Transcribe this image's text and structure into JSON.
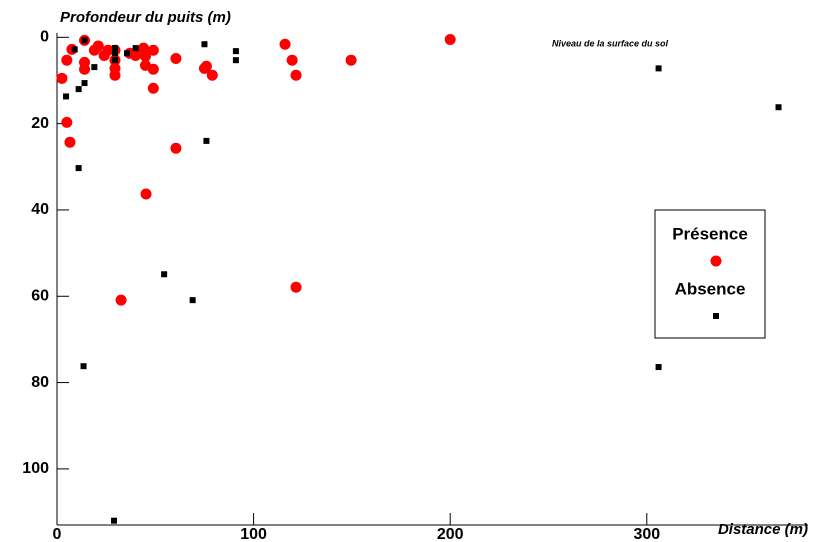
{
  "chart_data": {
    "type": "scatter",
    "y_axis_title": "Profondeur du puits (m)",
    "x_axis_title": "Distance (m)",
    "annotation": "Niveau de la surface du sol",
    "xlim": [
      0,
      382
    ],
    "ylim": [
      -1,
      113
    ],
    "y_inverted": true,
    "xticks": [
      0,
      100,
      200,
      300
    ],
    "yticks": [
      0,
      20,
      40,
      60,
      80,
      100
    ],
    "legend_position": "right",
    "series": [
      {
        "name": "Présence",
        "color": "#ff0000",
        "marker": "circle",
        "x": [
          2.5,
          5,
          5,
          6.6,
          7.6,
          14,
          14,
          14,
          19,
          21,
          24,
          26,
          29.5,
          29.5,
          29.5,
          29.5,
          32.6,
          37,
          40,
          44,
          45,
          45,
          45.3,
          49,
          49,
          49,
          60.5,
          60.5,
          75,
          76,
          79,
          116,
          119.6,
          121.6,
          121.6,
          149.6,
          200
        ],
        "values": [
          9.5,
          5.3,
          19.7,
          24.3,
          2.8,
          0.7,
          5.8,
          7.4,
          3,
          2,
          4.2,
          3,
          3,
          5.3,
          7.2,
          8.8,
          60.9,
          3.7,
          4.2,
          2.5,
          4.4,
          6.5,
          36.3,
          3,
          7.4,
          11.8,
          4.9,
          25.7,
          7.2,
          6.7,
          8.8,
          1.6,
          5.3,
          8.8,
          57.9,
          5.3,
          0.5
        ]
      },
      {
        "name": "Absence",
        "color": "#000000",
        "marker": "square",
        "x": [
          4.6,
          9,
          11,
          11,
          14,
          14,
          13.5,
          19,
          29.5,
          29.5,
          29.5,
          29,
          35.6,
          40,
          54.5,
          69,
          75,
          76,
          91,
          91,
          306,
          306,
          367
        ],
        "values": [
          13.7,
          2.8,
          12,
          30.3,
          10.6,
          0.7,
          76.2,
          6.9,
          2.5,
          3.7,
          5.3,
          112,
          3.7,
          2.5,
          54.9,
          60.9,
          1.6,
          24,
          3.2,
          5.3,
          7.2,
          76.4,
          16.2
        ]
      }
    ]
  }
}
